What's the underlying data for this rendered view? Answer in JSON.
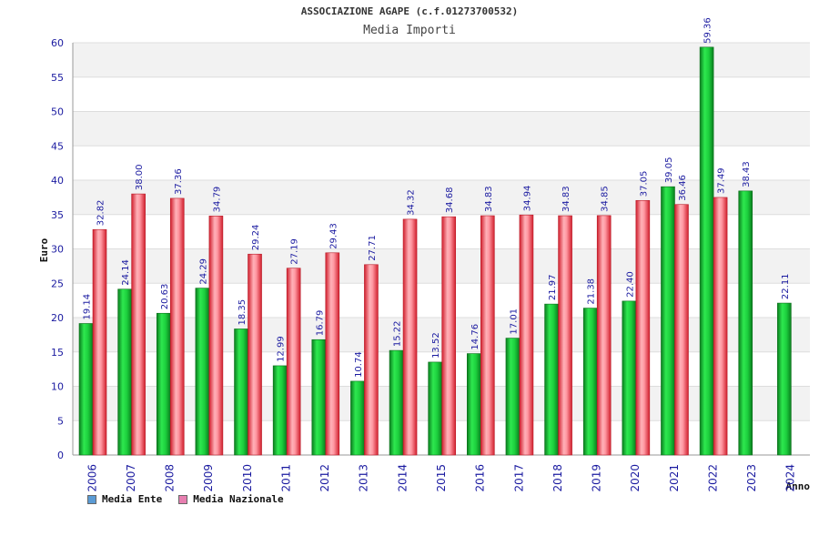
{
  "title": "ASSOCIAZIONE AGAPE (c.f.01273700532)",
  "subtitle": "Media Importi",
  "chart_data": {
    "type": "bar",
    "categories": [
      "2006",
      "2007",
      "2008",
      "2009",
      "2010",
      "2011",
      "2012",
      "2013",
      "2014",
      "2015",
      "2016",
      "2017",
      "2018",
      "2019",
      "2020",
      "2021",
      "2022",
      "2023",
      "2024"
    ],
    "series": [
      {
        "name": "Media Ente",
        "color": "#1cc43a",
        "values": [
          19.14,
          24.14,
          20.63,
          24.29,
          18.35,
          12.99,
          16.79,
          10.74,
          15.22,
          13.52,
          14.76,
          17.01,
          21.97,
          21.38,
          22.4,
          39.05,
          59.36,
          38.43,
          22.11
        ]
      },
      {
        "name": "Media Nazionale",
        "color": "#ee3a4a",
        "values": [
          32.82,
          38.0,
          37.36,
          34.79,
          29.24,
          27.19,
          29.43,
          27.71,
          34.32,
          34.68,
          34.83,
          34.94,
          34.83,
          34.85,
          37.05,
          36.46,
          37.49,
          null,
          null
        ]
      }
    ],
    "labels": [
      [
        "19.14",
        "24.14",
        "20.63",
        "24.29",
        "18.35",
        "12.99",
        "16.79",
        "10.74",
        "15.22",
        "13.52",
        "14.76",
        "17.01",
        "21.97",
        "21.38",
        "22.40",
        "39.05",
        "59.36",
        "38.43",
        "22.11"
      ],
      [
        "32.82",
        "38.00",
        "37.36",
        "34.79",
        "29.24",
        "27.19",
        "29.43",
        "27.71",
        "34.32",
        "34.68",
        "34.83",
        "34.94",
        "34.83",
        "34.85",
        "37.05",
        "36.46",
        "37.49",
        "",
        ""
      ]
    ],
    "ylabel": "Euro",
    "xlabel": "Anno",
    "ylim": [
      0,
      60
    ],
    "yticks": [
      0,
      5,
      10,
      15,
      20,
      25,
      30,
      35,
      40,
      45,
      50,
      55,
      60
    ],
    "grid": true,
    "legend_placement": "bottom-left",
    "legend": [
      {
        "label": "Media Ente",
        "color": "#5b9bd5"
      },
      {
        "label": "Media Nazionale",
        "color": "#e77fb0"
      }
    ]
  }
}
